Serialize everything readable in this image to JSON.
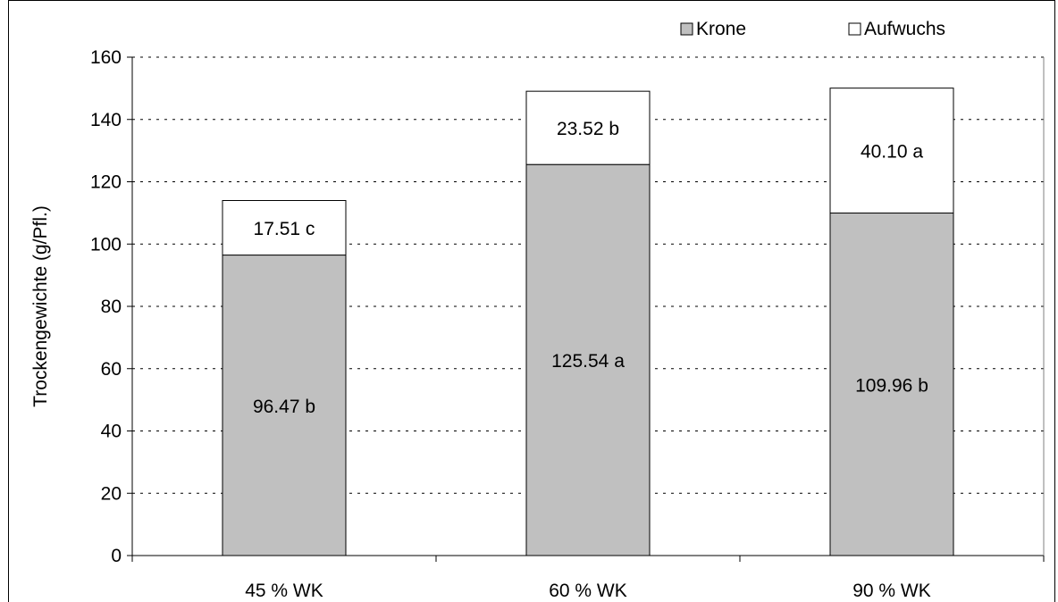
{
  "chart_data": {
    "type": "bar",
    "stacked": true,
    "categories": [
      "45 % WK",
      "60 % WK",
      "90 % WK"
    ],
    "series": [
      {
        "name": "Krone",
        "values": [
          96.47,
          125.54,
          109.96
        ],
        "labels": [
          "96.47 b",
          "125.54 a",
          "109.96 b"
        ],
        "color": "#c0c0c0"
      },
      {
        "name": "Aufwuchs",
        "values": [
          17.51,
          23.52,
          40.1
        ],
        "labels": [
          "17.51 c",
          "23.52 b",
          "40.10 a"
        ],
        "color": "#ffffff"
      }
    ],
    "ylabel": "Trockengewichte (g/Pfl.)",
    "xlabel": "",
    "ylim": [
      0,
      160
    ],
    "yticks": [
      0,
      20,
      40,
      60,
      80,
      100,
      120,
      140,
      160
    ],
    "grid": "horizontal-dashed",
    "legend_position": "top-right"
  }
}
